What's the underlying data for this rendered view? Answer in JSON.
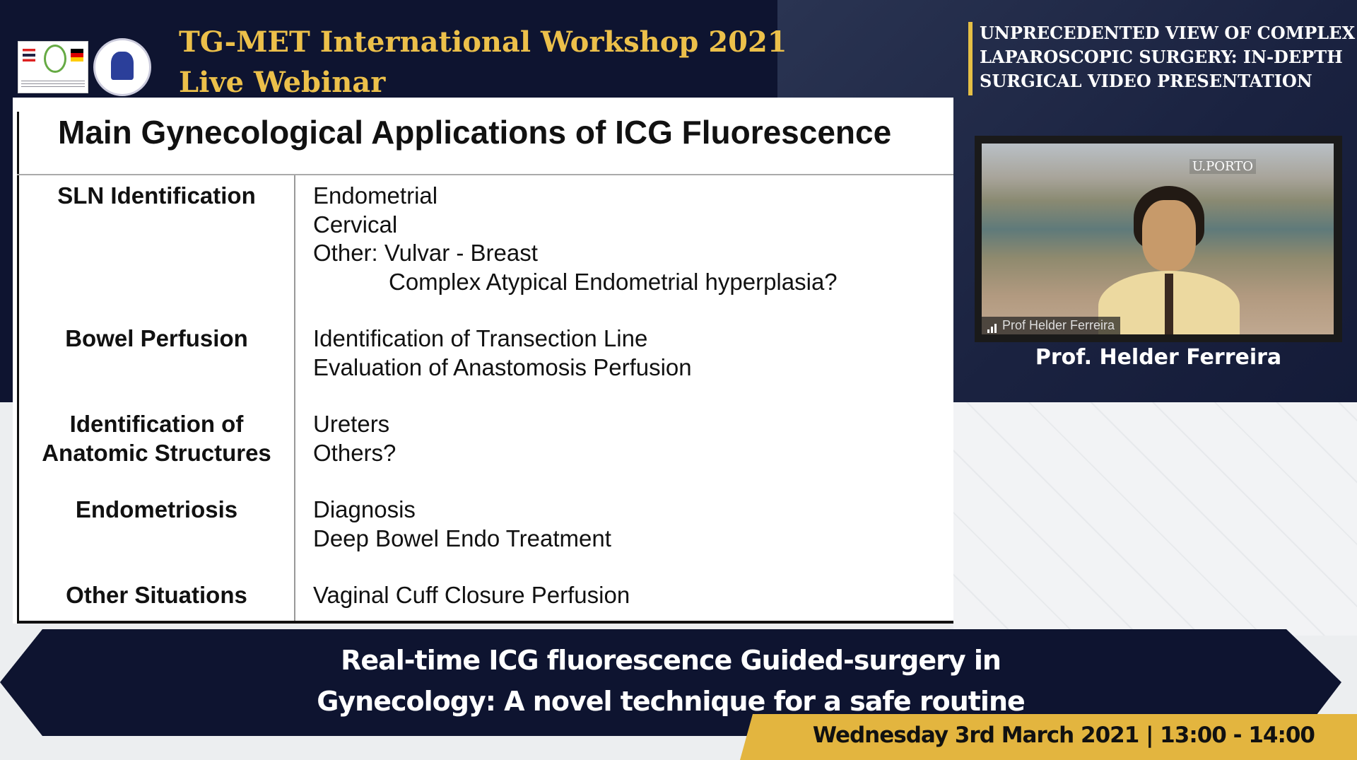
{
  "header": {
    "title_line1": "TG-MET International Workshop 2021",
    "title_line2": "Live Webinar",
    "logos": [
      "thai-german-training-center-logo",
      "tsgo-logo"
    ]
  },
  "session_title": {
    "lines": [
      "UNPRECEDENTED VIEW OF COMPLEX",
      "LAPAROSCOPIC SURGERY: IN-DEPTH",
      "SURGICAL VIDEO PRESENTATION"
    ]
  },
  "slide": {
    "title": "Main Gynecological Applications of ICG Fluorescence",
    "rows": [
      {
        "category": [
          "SLN Identification"
        ],
        "items": [
          "Endometrial",
          "Cervical",
          "Other: Vulvar - Breast"
        ],
        "indented_item": "Complex Atypical Endometrial hyperplasia?"
      },
      {
        "category": [
          "Bowel Perfusion"
        ],
        "items": [
          "Identification of Transection Line",
          "Evaluation of Anastomosis Perfusion"
        ]
      },
      {
        "category": [
          "Identification of",
          "Anatomic Structures"
        ],
        "items": [
          "Ureters",
          "Others?"
        ]
      },
      {
        "category": [
          "Endometriosis"
        ],
        "items": [
          "Diagnosis",
          "Deep Bowel Endo Treatment"
        ]
      },
      {
        "category": [
          "Other Situations"
        ],
        "items": [
          "Vaginal Cuff Closure Perfusion"
        ]
      }
    ]
  },
  "video": {
    "participant_label": "Prof Helder Ferreira",
    "background_logo": "U.PORTO",
    "signal_icon": "signal-bars-icon"
  },
  "speaker_name": "Prof. Helder Ferreira",
  "banner": {
    "line1": "Real-time ICG fluorescence Guided-surgery in",
    "line2": "Gynecology: A novel technique for a safe routine"
  },
  "date": "Wednesday 3rd March 2021 | 13:00 - 14:00",
  "colors": {
    "navy": "#0e1430",
    "gold": "#e3b53f",
    "title_gold": "#ecc04a"
  }
}
